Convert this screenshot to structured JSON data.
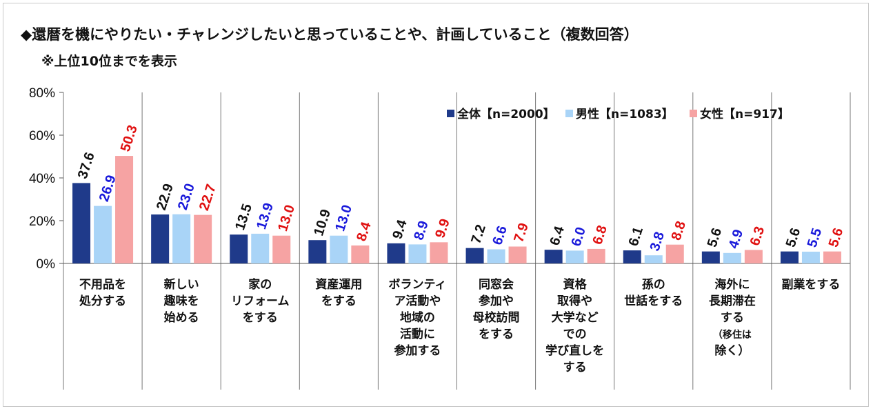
{
  "title": "◆還暦を機にやりたい・チャレンジしたいと思っていることや、計画していること（複数回答）",
  "subtitle": "※上位10位までを表示",
  "colors": {
    "all": "#1f3a8a",
    "male": "#a9d4f7",
    "female": "#f6a3a3",
    "label_all": "#111111",
    "label_male": "#1a1adb",
    "label_female": "#e01010"
  },
  "chart_data": {
    "type": "bar",
    "title": "◆還暦を機にやりたい・チャレンジしたいと思っていることや、計画していること（複数回答）",
    "subtitle": "※上位10位までを表示",
    "ylim": [
      0,
      80
    ],
    "yticks": [
      "0%",
      "20%",
      "40%",
      "60%",
      "80%"
    ],
    "categories": [
      {
        "lines": [
          "不用品を",
          "処分する"
        ]
      },
      {
        "lines": [
          "新しい",
          "趣味を",
          "始める"
        ]
      },
      {
        "lines": [
          "家の",
          "リフォーム",
          "をする"
        ]
      },
      {
        "lines": [
          "資産運用",
          "をする"
        ]
      },
      {
        "lines": [
          "ボランティ",
          "ア活動や",
          "地域の",
          "活動に",
          "参加する"
        ]
      },
      {
        "lines": [
          "同窓会",
          "参加や",
          "母校訪問",
          "をする"
        ]
      },
      {
        "lines": [
          "資格",
          "取得や",
          "大学など",
          "での",
          "学び直しを",
          "する"
        ]
      },
      {
        "lines": [
          "孫の",
          "世話をする"
        ]
      },
      {
        "lines": [
          "海外に",
          "長期滞在",
          "する",
          "（移住は",
          "除く）"
        ]
      },
      {
        "lines": [
          "副業をする"
        ]
      }
    ],
    "series": [
      {
        "name": "全体【n=2000】",
        "values": [
          37.6,
          22.9,
          13.5,
          10.9,
          9.4,
          7.2,
          6.4,
          6.1,
          5.6,
          5.6
        ]
      },
      {
        "name": "男性【n=1083】",
        "values": [
          26.9,
          23.0,
          13.9,
          13.0,
          8.9,
          6.6,
          6.0,
          3.8,
          4.9,
          5.5
        ]
      },
      {
        "name": "女性【n=917】",
        "values": [
          50.3,
          22.7,
          13.0,
          8.4,
          9.9,
          7.9,
          6.8,
          8.8,
          6.3,
          5.6
        ]
      }
    ],
    "legend_position": "top-right",
    "grid": false
  }
}
